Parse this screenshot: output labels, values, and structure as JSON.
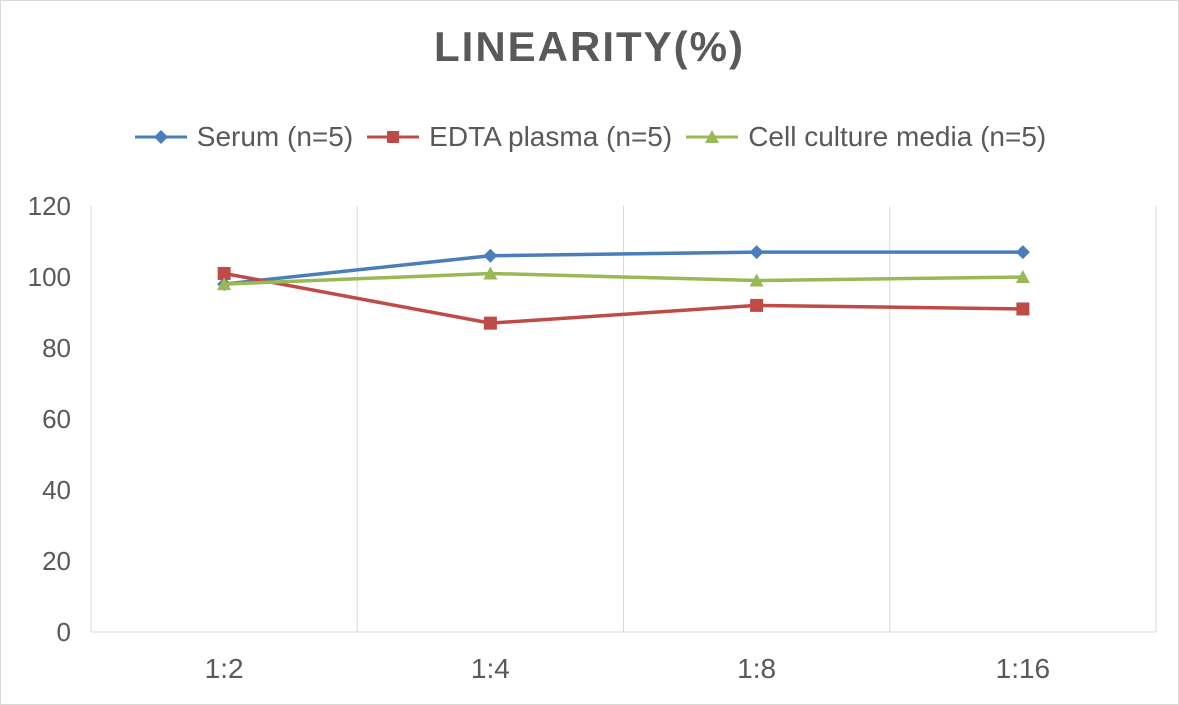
{
  "chart_data": {
    "type": "line",
    "title": "LINEARITY(%)",
    "categories": [
      "1:2",
      "1:4",
      "1:8",
      "1:16"
    ],
    "ylim": [
      0,
      120
    ],
    "yticks": [
      0,
      20,
      40,
      60,
      80,
      100,
      120
    ],
    "grid": "vertical",
    "legend_position": "top",
    "series": [
      {
        "name": "Serum (n=5)",
        "color": "#4a7ebb",
        "marker": "diamond",
        "values": [
          98,
          106,
          107,
          107
        ]
      },
      {
        "name": "EDTA plasma (n=5)",
        "color": "#be4b48",
        "marker": "square",
        "values": [
          101,
          87,
          92,
          91
        ]
      },
      {
        "name": "Cell culture media (n=5)",
        "color": "#98b954",
        "marker": "triangle",
        "values": [
          98,
          101,
          99,
          100
        ]
      }
    ]
  }
}
